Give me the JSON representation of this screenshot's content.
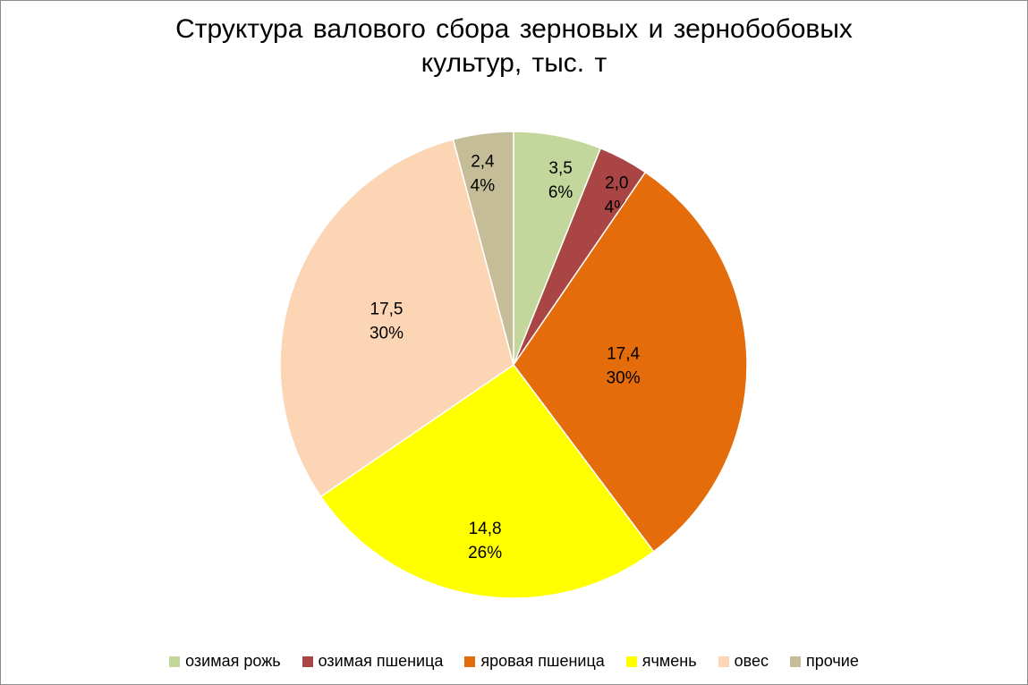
{
  "chart_data": {
    "type": "pie",
    "title": "Структура валового сбора зерновых и зернобобовых культур, тыс. т",
    "title_lines": [
      "Структура валового сбора зерновых и зернобобовых",
      "культур, тыс. т"
    ],
    "legend_position": "bottom",
    "slices": [
      {
        "name": "озимая рожь",
        "value": 3.5,
        "value_label": "3,5",
        "percent_label": "6%",
        "color": "#c3d69b"
      },
      {
        "name": "озимая пшеница",
        "value": 2.0,
        "value_label": "2,0",
        "percent_label": "4%",
        "color": "#a94544"
      },
      {
        "name": "яровая пшеница",
        "value": 17.4,
        "value_label": "17,4",
        "percent_label": "30%",
        "color": "#e46c0a"
      },
      {
        "name": "ячмень",
        "value": 14.8,
        "value_label": "14,8",
        "percent_label": "26%",
        "color": "#ffff00"
      },
      {
        "name": "овес",
        "value": 17.5,
        "value_label": "17,5",
        "percent_label": "30%",
        "color": "#fcd5b5"
      },
      {
        "name": "прочие",
        "value": 2.4,
        "value_label": "2,4",
        "percent_label": "4%",
        "color": "#c4bd97"
      }
    ]
  }
}
